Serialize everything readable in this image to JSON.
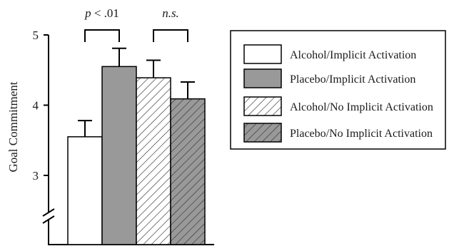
{
  "chart_data": {
    "type": "bar",
    "ylabel": "Goal Commitment",
    "ylim": [
      2.2,
      5.0
    ],
    "y_ticks": [
      3,
      4,
      5
    ],
    "axis_break": true,
    "series": [
      {
        "name": "Alcohol/Implicit Activation",
        "value": 3.55,
        "error_top": 3.78,
        "fill": "#ffffff",
        "pattern": "none"
      },
      {
        "name": "Placebo/Implicit Activation",
        "value": 4.55,
        "error_top": 4.81,
        "fill": "#999999",
        "pattern": "none"
      },
      {
        "name": "Alcohol/No Implicit Activation",
        "value": 4.39,
        "error_top": 4.64,
        "fill": "#ffffff",
        "pattern": "hatch"
      },
      {
        "name": "Placebo/No Implicit Activation",
        "value": 4.09,
        "error_top": 4.33,
        "fill": "#999999",
        "pattern": "hatch"
      }
    ],
    "annotations": [
      {
        "text": "p < .01",
        "italic_prefix": "p",
        "pair": [
          0,
          1
        ]
      },
      {
        "text": "n.s.",
        "pair": [
          2,
          3
        ]
      }
    ],
    "legend_position": "right"
  }
}
